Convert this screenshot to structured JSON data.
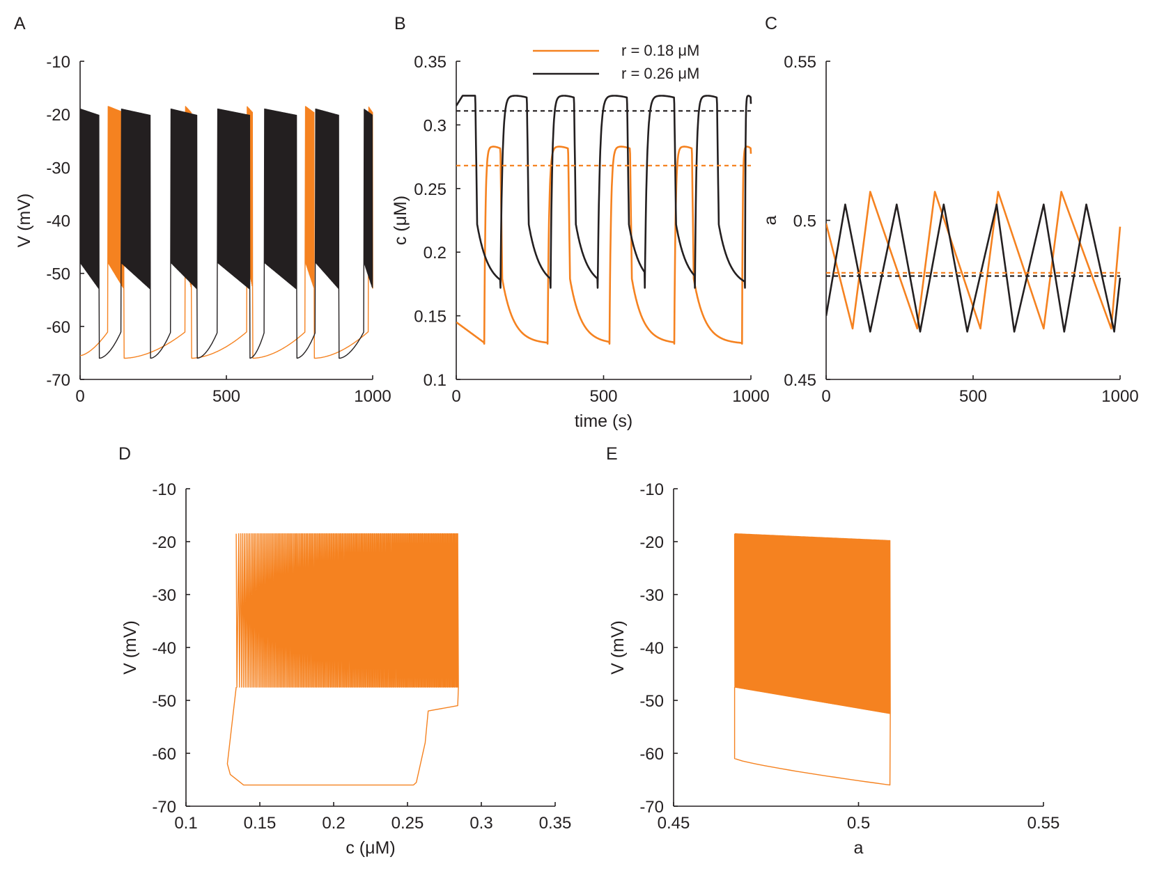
{
  "colors": {
    "orange": "#f58220",
    "black": "#231f20"
  },
  "legend": {
    "position": "top-right of panel B",
    "entries": [
      {
        "label": "r = 0.18 μM",
        "color": "#f58220"
      },
      {
        "label": "r = 0.26 μM",
        "color": "#231f20"
      }
    ]
  },
  "chart_data": [
    {
      "panel": "A",
      "type": "line",
      "xlabel": "",
      "ylabel": "V (mV)",
      "xlim": [
        0,
        1000
      ],
      "ylim": [
        -70,
        -10
      ],
      "xticks": [
        "0",
        "500",
        "1000"
      ],
      "yticks": [
        "-70",
        "-60",
        "-50",
        "-40",
        "-30",
        "-20",
        "-10"
      ],
      "series": [
        {
          "color": "#f58220",
          "kind": "bursting",
          "bursts": [
            [
              95,
              150
            ],
            [
              360,
              380
            ],
            [
              570,
              590
            ],
            [
              770,
              800
            ],
            [
              985,
              1000
            ]
          ],
          "peak": -18.5,
          "trough_top": -48,
          "trough_bottom": -53,
          "rest_min": -66,
          "rest_max": -61,
          "start_v": -65.5,
          "end_v": -50
        },
        {
          "color": "#231f20",
          "kind": "bursting",
          "bursts": [
            [
              0,
              65
            ],
            [
              140,
              240
            ],
            [
              310,
              400
            ],
            [
              470,
              580
            ],
            [
              630,
              740
            ],
            [
              805,
              885
            ],
            [
              970,
              1000
            ]
          ],
          "peak": -19,
          "trough_top": -48,
          "trough_bottom": -53,
          "rest_min": -66,
          "rest_max": -61
        }
      ]
    },
    {
      "panel": "B",
      "type": "line",
      "xlabel": "time (s)",
      "ylabel": "c (μM)",
      "xlim": [
        0,
        1000
      ],
      "ylim": [
        0.1,
        0.35
      ],
      "xticks": [
        "0",
        "500",
        "1000"
      ],
      "yticks": [
        "0.1",
        "0.15",
        "0.2",
        "0.25",
        "0.3",
        "0.35"
      ],
      "hlines": [
        {
          "y": 0.311,
          "color": "#231f20",
          "style": "dashed"
        },
        {
          "y": 0.268,
          "color": "#f58220",
          "style": "dashed"
        }
      ],
      "series": [
        {
          "color": "#f58220",
          "kind": "calcium",
          "bursts": [
            [
              95,
              150
            ],
            [
              310,
              380
            ],
            [
              520,
              590
            ],
            [
              740,
              800
            ],
            [
              970,
              1000
            ]
          ],
          "high": 0.283,
          "low": 0.128,
          "start": 0.145
        },
        {
          "color": "#231f20",
          "kind": "calcium",
          "bursts": [
            [
              0,
              65
            ],
            [
              150,
              240
            ],
            [
              320,
              400
            ],
            [
              480,
              580
            ],
            [
              640,
              740
            ],
            [
              810,
              885
            ],
            [
              980,
              1000
            ]
          ],
          "high": 0.323,
          "low": 0.172,
          "start": 0.315
        }
      ]
    },
    {
      "panel": "C",
      "type": "line",
      "xlabel": "",
      "ylabel": "a",
      "xlim": [
        0,
        1000
      ],
      "ylim": [
        0.45,
        0.55
      ],
      "xticks": [
        "0",
        "500",
        "1000"
      ],
      "yticks": [
        "0.45",
        "0.5",
        "0.55"
      ],
      "hlines": [
        {
          "y": 0.4835,
          "color": "#f58220",
          "style": "dashed"
        },
        {
          "y": 0.4825,
          "color": "#231f20",
          "style": "dashed"
        }
      ],
      "series": [
        {
          "color": "#f58220",
          "x": [
            0,
            90,
            150,
            310,
            370,
            525,
            585,
            740,
            800,
            970,
            1000
          ],
          "y": [
            0.499,
            0.466,
            0.509,
            0.466,
            0.509,
            0.466,
            0.509,
            0.466,
            0.509,
            0.466,
            0.498
          ]
        },
        {
          "color": "#231f20",
          "x": [
            0,
            65,
            150,
            240,
            320,
            400,
            480,
            580,
            640,
            740,
            810,
            885,
            980,
            1000
          ],
          "y": [
            0.47,
            0.505,
            0.465,
            0.505,
            0.465,
            0.505,
            0.465,
            0.505,
            0.465,
            0.505,
            0.465,
            0.505,
            0.465,
            0.482
          ]
        }
      ]
    },
    {
      "panel": "D",
      "type": "line",
      "xlabel": "c (μM)",
      "ylabel": "V (mV)",
      "xlim": [
        0.1,
        0.35
      ],
      "ylim": [
        -70,
        -10
      ],
      "xticks": [
        "0.1",
        "0.15",
        "0.2",
        "0.25",
        "0.3",
        "0.35"
      ],
      "yticks": [
        "-70",
        "-60",
        "-50",
        "-40",
        "-30",
        "-20",
        "-10"
      ],
      "series": [
        {
          "color": "#f58220",
          "kind": "phase-c",
          "c_min": 0.128,
          "c_max": 0.284,
          "c_jump": 0.262,
          "peak": -18.5,
          "trough": -47.5,
          "rest": -66
        }
      ]
    },
    {
      "panel": "E",
      "type": "line",
      "xlabel": "a",
      "ylabel": "V (mV)",
      "xlim": [
        0.45,
        0.55
      ],
      "ylim": [
        -70,
        -10
      ],
      "xticks": [
        "0.45",
        "0.5",
        "0.55"
      ],
      "yticks": [
        "-70",
        "-60",
        "-50",
        "-40",
        "-30",
        "-20",
        "-10"
      ],
      "series": [
        {
          "color": "#f58220",
          "kind": "phase-a",
          "a_min": 0.4665,
          "a_max": 0.5085,
          "peak_start": -18.5,
          "peak_end": -19.8,
          "trough_start": -47.5,
          "trough_end": -52.5,
          "rest_start": -61,
          "rest_end": -66
        }
      ]
    }
  ]
}
